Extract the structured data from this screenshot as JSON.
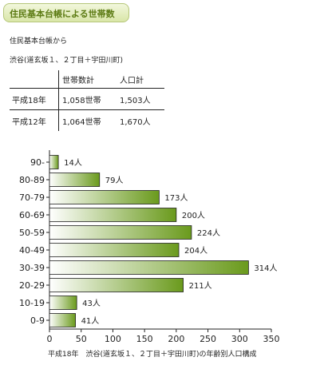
{
  "header": {
    "title": "住民基本台帳による世帯数"
  },
  "source": "住民基本台帳から",
  "area": "渋谷(道玄坂１、２丁目＋宇田川町)",
  "summary_table": {
    "columns": [
      "",
      "世帯数計",
      "人口計"
    ],
    "rows": [
      [
        "平成18年",
        "1,058世帯",
        "1,503人"
      ],
      [
        "平成12年",
        "1,064世帯",
        "1,670人"
      ]
    ]
  },
  "chart_data": {
    "type": "bar",
    "orientation": "horizontal",
    "categories": [
      "90-",
      "80-89",
      "70-79",
      "60-69",
      "50-59",
      "40-49",
      "30-39",
      "20-29",
      "10-19",
      "0-9"
    ],
    "values": [
      14,
      79,
      173,
      200,
      224,
      204,
      314,
      211,
      43,
      41
    ],
    "data_labels": [
      "14人",
      "79人",
      "173人",
      "200人",
      "224人",
      "204人",
      "314人",
      "211人",
      "43人",
      "41人"
    ],
    "xlim": [
      0,
      350
    ],
    "xticks": [
      0,
      50,
      100,
      150,
      200,
      250,
      300,
      350
    ],
    "bar_gradient": [
      "#ffffff",
      "#6a9a1c"
    ],
    "caption": "平成18年　渋谷(道玄坂１、２丁目＋宇田川町)の年齢別人口構成"
  }
}
